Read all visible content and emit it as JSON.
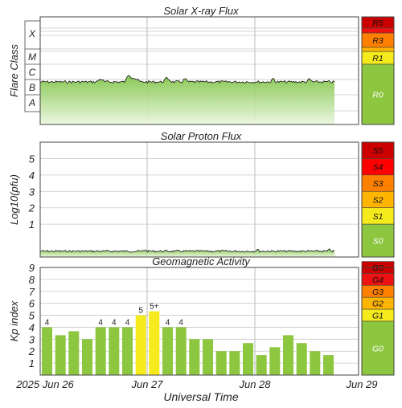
{
  "panels": {
    "xray": {
      "title": "Solar X-ray Flux",
      "ylabel": "Flare Class",
      "class_labels": [
        "X",
        "M",
        "C",
        "B",
        "A"
      ],
      "scale_labels": [
        {
          "text": "R5",
          "color": "#cc0000"
        },
        {
          "text": "R3",
          "color": "#ff7f00"
        },
        {
          "text": "R1",
          "color": "#f4ea1c"
        },
        {
          "text": "R0",
          "color": "#8dc63f"
        }
      ]
    },
    "proton": {
      "title": "Solar Proton Flux",
      "ylabel": "Log10(pfu)",
      "tick_labels": [
        "5",
        "4",
        "3",
        "2",
        "1"
      ],
      "scale_labels": [
        {
          "text": "S5",
          "color": "#cc0000"
        },
        {
          "text": "S4",
          "color": "#ff0000"
        },
        {
          "text": "S3",
          "color": "#ff7f00"
        },
        {
          "text": "S2",
          "color": "#ffb400"
        },
        {
          "text": "S1",
          "color": "#f4ea1c"
        },
        {
          "text": "S0",
          "color": "#8dc63f"
        }
      ]
    },
    "geomag": {
      "title": "Geomagnetic Activity",
      "ylabel": "Kp index",
      "tick_labels": [
        "9",
        "8",
        "7",
        "6",
        "5",
        "4",
        "3",
        "2",
        "1"
      ],
      "scale_labels": [
        {
          "text": "G5",
          "color": "#cc0000"
        },
        {
          "text": "G4",
          "color": "#ee1111"
        },
        {
          "text": "G3",
          "color": "#ff7f00"
        },
        {
          "text": "G2",
          "color": "#ffb400"
        },
        {
          "text": "G1",
          "color": "#f4ea1c"
        },
        {
          "text": "G0",
          "color": "#8dc63f"
        }
      ]
    }
  },
  "xaxis": {
    "title": "Universal Time",
    "ticks": [
      "2025 Jun 26",
      "Jun 27",
      "Jun 28",
      "Jun 29"
    ]
  },
  "chart_data": [
    {
      "type": "area",
      "title": "Solar X-ray Flux",
      "ylabel": "Flare Class",
      "y_scale": "log",
      "y_levels": [
        "A",
        "B",
        "C",
        "M",
        "X"
      ],
      "x": [
        "2025-06-26",
        "2025-06-27",
        "2025-06-28",
        "2025-06-29"
      ],
      "series": [
        {
          "values": [
            "B6",
            "B5",
            "B5",
            "B5"
          ]
        }
      ]
    },
    {
      "type": "area",
      "title": "Solar Proton Flux",
      "ylabel": "Log10(pfu)",
      "ylim": [
        -1,
        6
      ],
      "x": [
        "2025-06-26",
        "2025-06-27",
        "2025-06-28",
        "2025-06-29"
      ],
      "series": [
        {
          "values": [
            -0.5,
            -0.5,
            -0.5,
            -0.5
          ]
        }
      ]
    },
    {
      "type": "bar",
      "title": "Geomagnetic Activity",
      "ylabel": "Kp index",
      "ylim": [
        0,
        9
      ],
      "colors": {
        "quiet": "#8dc63f",
        "storm": "#f4ea1c"
      },
      "values": [
        4,
        3.33,
        3.67,
        3,
        4,
        4,
        4,
        5,
        5.33,
        4,
        4,
        3,
        3,
        2,
        2,
        2.67,
        1.67,
        2.33,
        3.33,
        2.67,
        2,
        1.67
      ],
      "data_labels": [
        "4",
        "",
        "",
        "",
        "4",
        "4",
        "4",
        "5",
        "5+",
        "4",
        "4",
        "",
        "",
        "",
        "",
        "",
        "",
        "",
        "",
        "",
        "",
        ""
      ]
    }
  ]
}
